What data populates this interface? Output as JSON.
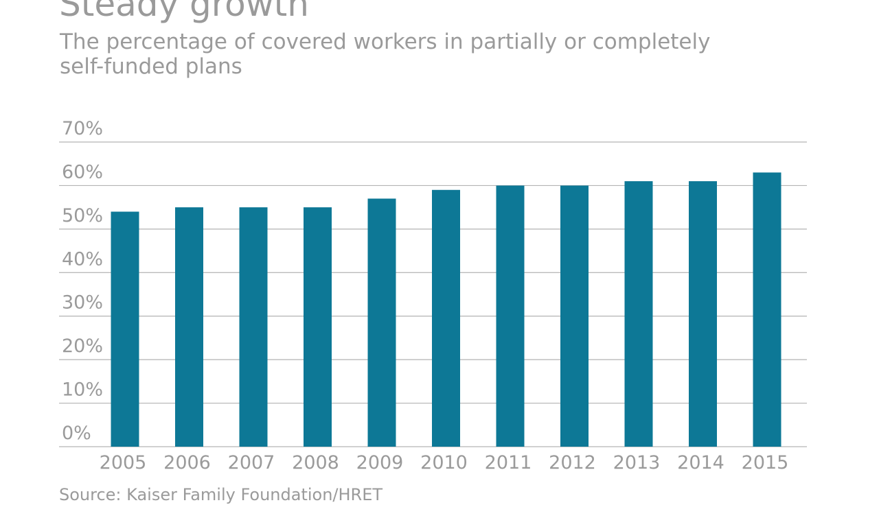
{
  "colors": {
    "bar": "#0d7896",
    "text": "#9a9a9a",
    "grid": "#b3b3b3"
  },
  "chart_data": {
    "type": "bar",
    "title": "Steady growth",
    "subtitle": "The percentage of covered workers in partially or completely self-funded plans",
    "source": "Source: Kaiser Family Foundation/HRET",
    "categories": [
      "2005",
      "2006",
      "2007",
      "2008",
      "2009",
      "2010",
      "2011",
      "2012",
      "2013",
      "2014",
      "2015"
    ],
    "values": [
      54,
      55,
      55,
      55,
      57,
      59,
      60,
      60,
      61,
      61,
      63
    ],
    "ylim": [
      0,
      70
    ],
    "yticks": [
      0,
      10,
      20,
      30,
      40,
      50,
      60,
      70
    ],
    "ytick_labels": [
      "0%",
      "10%",
      "20%",
      "30%",
      "40%",
      "50%",
      "60%",
      "70%"
    ],
    "xlabel": "",
    "ylabel": "",
    "grid": true,
    "legend": "none"
  }
}
